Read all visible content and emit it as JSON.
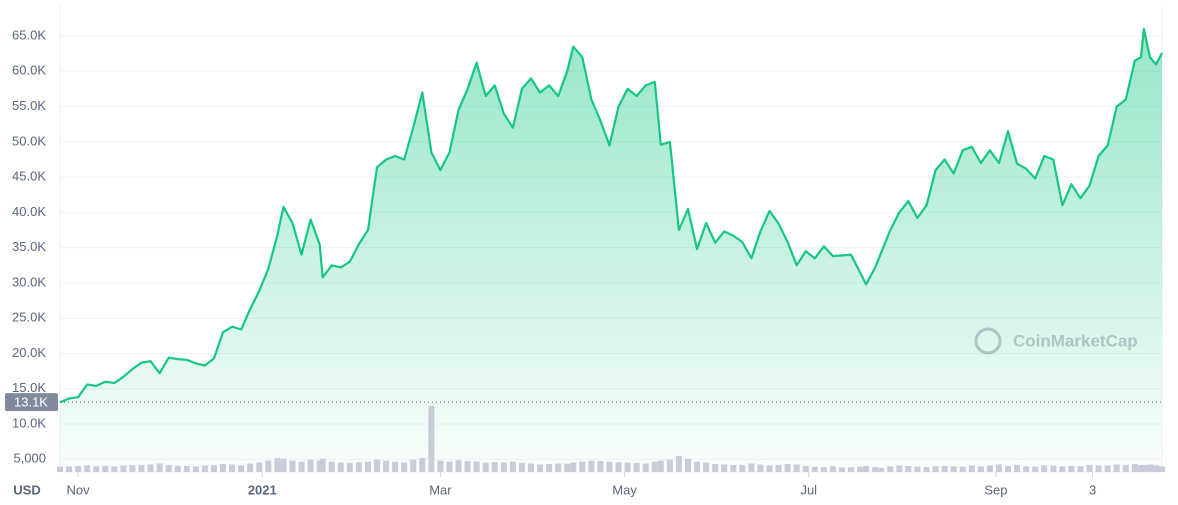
{
  "chart_data": {
    "type": "line",
    "currency": "USD",
    "watermark": "CoinMarketCap",
    "x": [
      0,
      3,
      6,
      9,
      12,
      15,
      18,
      21,
      24,
      27,
      30,
      33,
      36,
      39,
      42,
      45,
      48,
      51,
      54,
      57,
      60,
      63,
      66,
      69,
      72,
      74,
      77,
      80,
      83,
      86,
      87,
      90,
      93,
      96,
      99,
      102,
      105,
      108,
      111,
      114,
      117,
      120,
      123,
      126,
      129,
      132,
      135,
      138,
      141,
      144,
      147,
      150,
      153,
      156,
      159,
      162,
      165,
      168,
      170,
      173,
      176,
      179,
      182,
      185,
      188,
      191,
      194,
      197,
      199,
      202,
      205,
      208,
      211,
      214,
      217,
      220,
      223,
      226,
      229,
      232,
      235,
      238,
      241,
      244,
      247,
      250,
      253,
      256,
      259,
      262,
      265,
      267,
      270,
      272,
      275,
      278,
      281,
      284,
      287,
      290,
      293,
      296,
      299,
      302,
      305,
      308,
      311,
      314,
      317,
      320,
      323,
      326,
      329,
      332,
      335,
      338,
      341,
      344,
      347,
      350,
      353,
      356,
      358,
      359,
      361,
      363,
      365
    ],
    "xlim": [
      0,
      365
    ],
    "xticks": [
      {
        "value": 6,
        "label": "Nov"
      },
      {
        "value": 67,
        "label": "2021"
      },
      {
        "value": 126,
        "label": "Mar"
      },
      {
        "value": 187,
        "label": "May"
      },
      {
        "value": 248,
        "label": "Jul"
      },
      {
        "value": 310,
        "label": "Sep"
      },
      {
        "value": 342,
        "label": "3"
      }
    ],
    "ylim": [
      3200,
      69400
    ],
    "yticks": [
      {
        "value": 5000,
        "label": "5,000"
      },
      {
        "value": 10000,
        "label": "10.0K"
      },
      {
        "value": 15000,
        "label": "15.0K"
      },
      {
        "value": 20000,
        "label": "20.0K"
      },
      {
        "value": 25000,
        "label": "25.0K"
      },
      {
        "value": 30000,
        "label": "30.0K"
      },
      {
        "value": 35000,
        "label": "35.0K"
      },
      {
        "value": 40000,
        "label": "40.0K"
      },
      {
        "value": 45000,
        "label": "45.0K"
      },
      {
        "value": 50000,
        "label": "50.0K"
      },
      {
        "value": 55000,
        "label": "55.0K"
      },
      {
        "value": 60000,
        "label": "60.0K"
      },
      {
        "value": 65000,
        "label": "65.0K"
      }
    ],
    "grid": true,
    "ref_line": {
      "value": 13100,
      "label": "13.1K"
    },
    "y2lim": [
      0,
      360
    ],
    "series": [
      {
        "color": "#16c784",
        "values": [
          13100,
          13600,
          13800,
          15600,
          15400,
          16000,
          15800,
          16700,
          17800,
          18700,
          18900,
          17200,
          19400,
          19200,
          19100,
          18600,
          18300,
          19300,
          23000,
          23800,
          23400,
          26300,
          28900,
          32000,
          36800,
          40800,
          38500,
          34000,
          39000,
          35500,
          30800,
          32500,
          32200,
          33000,
          35500,
          37500,
          46400,
          47500,
          48000,
          47500,
          52000,
          57000,
          48500,
          46000,
          48500,
          54500,
          57500,
          61200,
          56500,
          58000,
          54000,
          52000,
          57500,
          59000,
          57000,
          58000,
          56500,
          60000,
          63500,
          62000,
          56000,
          53000,
          49500,
          55000,
          57500,
          56500,
          58000,
          58500,
          49600,
          50000,
          37500,
          40500,
          34800,
          38500,
          35700,
          37300,
          36700,
          35800,
          33500,
          37300,
          40200,
          38400,
          35800,
          32500,
          34500,
          33500,
          35200,
          33800,
          33900,
          34000,
          31500,
          29800,
          32200,
          34300,
          37500,
          40000,
          41600,
          39200,
          41000,
          46000,
          47500,
          45500,
          48800,
          49300,
          47000,
          48800,
          47000,
          51500,
          46900,
          46200,
          44800,
          48000,
          47500,
          41000,
          44000,
          42000,
          43800,
          48000,
          49500,
          55000,
          56000,
          61500,
          62000,
          66000,
          62000,
          61000,
          62600
        ]
      },
      {
        "type": "bar",
        "axis": "y2",
        "color": "#c7ccd8",
        "values": [
          28,
          30,
          32,
          35,
          30,
          33,
          30,
          34,
          36,
          38,
          40,
          45,
          38,
          33,
          32,
          30,
          34,
          36,
          42,
          40,
          35,
          45,
          50,
          60,
          75,
          70,
          60,
          55,
          65,
          60,
          70,
          55,
          50,
          48,
          52,
          55,
          65,
          60,
          55,
          50,
          65,
          75,
          350,
          60,
          55,
          62,
          58,
          56,
          50,
          52,
          50,
          55,
          48,
          45,
          40,
          42,
          45,
          44,
          50,
          55,
          60,
          58,
          55,
          52,
          50,
          48,
          45,
          55,
          60,
          65,
          85,
          70,
          55,
          50,
          42,
          40,
          38,
          36,
          45,
          40,
          35,
          38,
          42,
          40,
          32,
          28,
          26,
          30,
          24,
          25,
          28,
          32,
          26,
          22,
          30,
          35,
          32,
          28,
          26,
          30,
          32,
          30,
          28,
          34,
          30,
          35,
          40,
          32,
          38,
          30,
          28,
          36,
          34,
          30,
          32,
          30,
          38,
          35,
          34,
          40,
          38,
          42,
          36,
          38,
          40,
          35,
          30
        ]
      }
    ]
  }
}
